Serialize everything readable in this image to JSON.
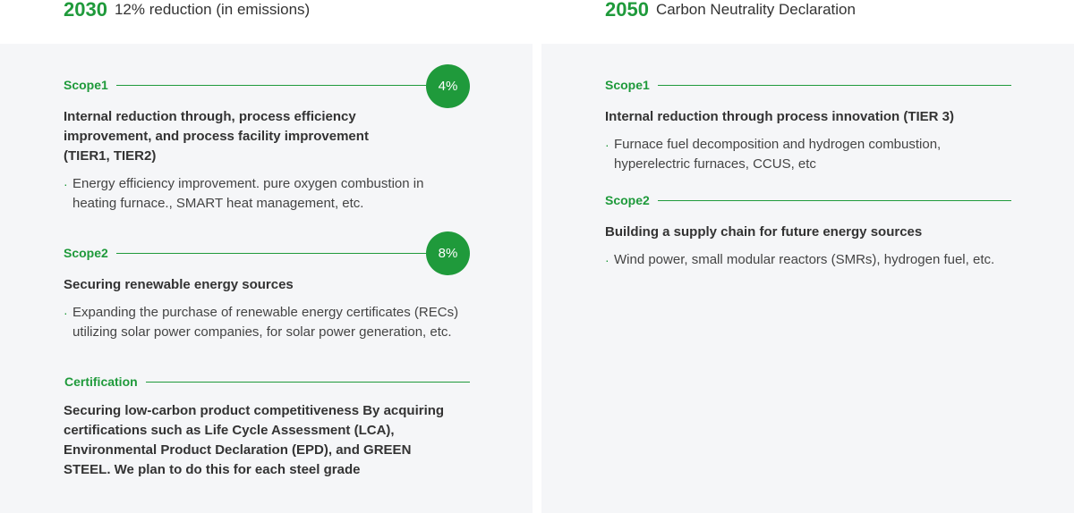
{
  "left": {
    "year": "2030",
    "headline": "12% reduction (in emissions)",
    "sections": [
      {
        "label": "Scope1",
        "badge": "4%",
        "title": "Internal reduction through, process efficiency improvement, and process facility improvement (TIER1, TIER2)",
        "bullet": "Energy efficiency improvement. pure oxygen combustion in heating furnace., SMART heat management, etc."
      },
      {
        "label": "Scope2",
        "badge": "8%",
        "title": "Securing renewable energy sources",
        "bullet": "Expanding the purchase of renewable energy certificates (RECs) utilizing solar power companies, for solar power generation, etc."
      },
      {
        "label": "Certification",
        "title": "Securing low-carbon product competitiveness By acquiring certifications such as Life Cycle Assessment (LCA), Environmental Product Declaration (EPD), and GREEN STEEL. We plan to do this for each steel grade"
      }
    ]
  },
  "right": {
    "year": "2050",
    "headline": "Carbon Neutrality Declaration",
    "sections": [
      {
        "label": "Scope1",
        "title": "Internal reduction through process innovation (TIER 3)",
        "bullet": "Furnace fuel decomposition and hydrogen combustion, hyperelectric furnaces, CCUS, etc"
      },
      {
        "label": "Scope2",
        "title": "Building a supply chain for future energy sources",
        "bullet": "Wind power, small modular reactors (SMRs), hydrogen fuel, etc."
      }
    ]
  },
  "colors": {
    "accent": "#1f9a3b",
    "panel": "#f5f6f8",
    "text": "#333333"
  }
}
